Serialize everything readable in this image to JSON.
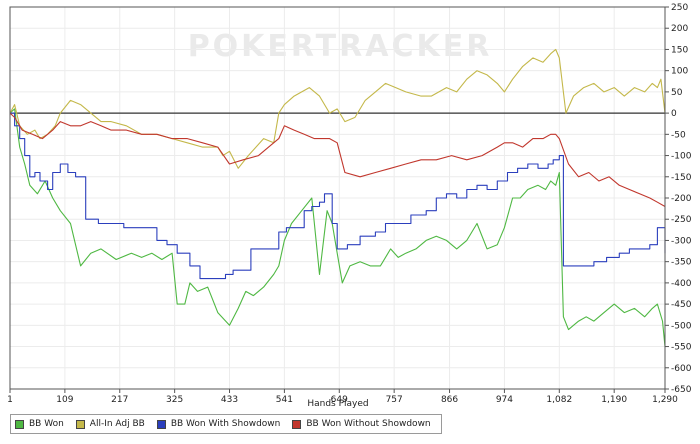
{
  "watermark": "POKERTRACKER",
  "chart_data": {
    "type": "line",
    "xlabel": "Hands Played",
    "ylabel": "",
    "xlim": [
      1,
      1290
    ],
    "ylim": [
      -650,
      250
    ],
    "xticks": [
      1,
      109,
      217,
      325,
      433,
      541,
      649,
      757,
      866,
      974,
      1082,
      1190,
      1290
    ],
    "yticks": [
      250,
      200,
      150,
      100,
      50,
      0,
      -50,
      -100,
      -150,
      -200,
      -250,
      -300,
      -350,
      -400,
      -450,
      -500,
      -550,
      -600,
      -650
    ],
    "grid": true,
    "legend_position": "bottom-left",
    "series": [
      {
        "name": "BB Won",
        "color": "#4fb843",
        "step": false,
        "x": [
          1,
          10,
          20,
          30,
          40,
          55,
          70,
          85,
          100,
          120,
          140,
          160,
          180,
          210,
          240,
          260,
          280,
          300,
          320,
          330,
          345,
          355,
          370,
          390,
          410,
          433,
          450,
          465,
          480,
          500,
          520,
          530,
          541,
          555,
          575,
          595,
          610,
          625,
          635,
          645,
          655,
          670,
          690,
          710,
          730,
          750,
          765,
          780,
          800,
          820,
          840,
          860,
          880,
          900,
          920,
          940,
          960,
          974,
          990,
          1005,
          1020,
          1040,
          1055,
          1065,
          1075,
          1082,
          1090,
          1100,
          1110,
          1120,
          1135,
          1150,
          1170,
          1190,
          1210,
          1230,
          1250,
          1265,
          1275,
          1285,
          1290
        ],
        "y": [
          0,
          10,
          -80,
          -120,
          -170,
          -190,
          -160,
          -200,
          -230,
          -260,
          -360,
          -330,
          -320,
          -345,
          -330,
          -340,
          -330,
          -345,
          -330,
          -450,
          -450,
          -400,
          -420,
          -410,
          -470,
          -500,
          -460,
          -420,
          -430,
          -410,
          -380,
          -360,
          -300,
          -260,
          -230,
          -200,
          -380,
          -230,
          -260,
          -330,
          -400,
          -360,
          -350,
          -360,
          -360,
          -320,
          -340,
          -330,
          -320,
          -300,
          -290,
          -300,
          -320,
          -300,
          -260,
          -320,
          -310,
          -270,
          -200,
          -200,
          -180,
          -170,
          -180,
          -160,
          -170,
          -140,
          -480,
          -510,
          -500,
          -490,
          -480,
          -490,
          -470,
          -450,
          -470,
          -460,
          -480,
          -460,
          -450,
          -490,
          -550
        ]
      },
      {
        "name": "All-In Adj BB",
        "color": "#c4b84a",
        "step": false,
        "x": [
          1,
          10,
          20,
          35,
          50,
          60,
          75,
          90,
          100,
          120,
          140,
          160,
          180,
          200,
          230,
          260,
          290,
          320,
          350,
          380,
          410,
          420,
          433,
          450,
          470,
          500,
          520,
          530,
          541,
          560,
          590,
          610,
          630,
          645,
          660,
          680,
          700,
          720,
          740,
          760,
          780,
          810,
          830,
          860,
          880,
          900,
          920,
          940,
          960,
          974,
          990,
          1010,
          1030,
          1050,
          1065,
          1075,
          1082,
          1095,
          1110,
          1130,
          1150,
          1170,
          1190,
          1210,
          1230,
          1250,
          1265,
          1275,
          1282,
          1290
        ],
        "y": [
          0,
          20,
          -30,
          -50,
          -40,
          -60,
          -50,
          -30,
          0,
          30,
          20,
          0,
          -20,
          -20,
          -30,
          -50,
          -50,
          -60,
          -70,
          -80,
          -80,
          -100,
          -90,
          -130,
          -100,
          -60,
          -70,
          0,
          20,
          40,
          60,
          40,
          0,
          10,
          -20,
          -10,
          30,
          50,
          70,
          60,
          50,
          40,
          40,
          60,
          50,
          80,
          100,
          90,
          70,
          50,
          80,
          110,
          130,
          120,
          140,
          150,
          130,
          0,
          40,
          60,
          70,
          50,
          60,
          40,
          60,
          50,
          70,
          60,
          80,
          0
        ]
      },
      {
        "name": "BB Won With Showdown",
        "color": "#2b3fbd",
        "step": true,
        "x": [
          1,
          10,
          20,
          30,
          40,
          50,
          60,
          75,
          85,
          100,
          115,
          130,
          150,
          175,
          200,
          225,
          260,
          290,
          310,
          330,
          355,
          375,
          395,
          415,
          425,
          440,
          455,
          475,
          495,
          515,
          530,
          545,
          565,
          580,
          595,
          610,
          620,
          635,
          645,
          665,
          690,
          720,
          740,
          760,
          790,
          820,
          840,
          860,
          880,
          900,
          920,
          940,
          960,
          980,
          1000,
          1020,
          1040,
          1060,
          1070,
          1082,
          1090,
          1110,
          1130,
          1150,
          1175,
          1200,
          1220,
          1240,
          1260,
          1275,
          1290
        ],
        "y": [
          0,
          -30,
          -60,
          -100,
          -150,
          -140,
          -160,
          -180,
          -140,
          -120,
          -140,
          -150,
          -250,
          -260,
          -260,
          -270,
          -270,
          -300,
          -310,
          -330,
          -360,
          -390,
          -390,
          -390,
          -380,
          -370,
          -370,
          -320,
          -320,
          -320,
          -280,
          -270,
          -270,
          -230,
          -220,
          -210,
          -190,
          -260,
          -320,
          -310,
          -290,
          -280,
          -260,
          -260,
          -240,
          -230,
          -200,
          -190,
          -200,
          -180,
          -170,
          -180,
          -160,
          -140,
          -130,
          -120,
          -130,
          -120,
          -110,
          -100,
          -360,
          -360,
          -360,
          -350,
          -340,
          -330,
          -320,
          -320,
          -310,
          -270,
          -330
        ]
      },
      {
        "name": "BB Won Without Showdown",
        "color": "#c1372d",
        "step": false,
        "x": [
          1,
          10,
          25,
          45,
          65,
          85,
          100,
          120,
          140,
          160,
          180,
          200,
          230,
          260,
          290,
          320,
          350,
          380,
          410,
          433,
          460,
          490,
          510,
          530,
          541,
          560,
          580,
          600,
          630,
          645,
          660,
          690,
          720,
          750,
          780,
          810,
          840,
          870,
          900,
          930,
          960,
          974,
          990,
          1010,
          1030,
          1050,
          1065,
          1075,
          1082,
          1100,
          1120,
          1140,
          1160,
          1180,
          1200,
          1220,
          1240,
          1260,
          1275,
          1290
        ],
        "y": [
          0,
          -10,
          -40,
          -50,
          -60,
          -40,
          -20,
          -30,
          -30,
          -20,
          -30,
          -40,
          -40,
          -50,
          -50,
          -60,
          -60,
          -70,
          -80,
          -120,
          -110,
          -100,
          -80,
          -60,
          -30,
          -40,
          -50,
          -60,
          -60,
          -70,
          -140,
          -150,
          -140,
          -130,
          -120,
          -110,
          -110,
          -100,
          -110,
          -100,
          -80,
          -70,
          -70,
          -80,
          -60,
          -60,
          -50,
          -50,
          -60,
          -120,
          -150,
          -140,
          -160,
          -150,
          -170,
          -180,
          -190,
          -200,
          -210,
          -220
        ]
      }
    ]
  }
}
